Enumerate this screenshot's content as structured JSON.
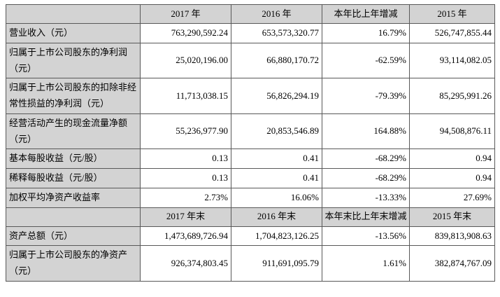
{
  "colors": {
    "header_bg": "#d3d3d3",
    "cell_bg": "#ffffff",
    "border": "#595959",
    "text": "#000000"
  },
  "table": {
    "sections": [
      {
        "headers": [
          "",
          "2017 年",
          "2016 年",
          "本年比上年增减",
          "2015 年"
        ],
        "rows": [
          {
            "label": "营业收入（元）",
            "values": [
              "763,290,592.24",
              "653,573,320.77",
              "16.79%",
              "526,747,855.44"
            ]
          },
          {
            "label": "归属于上市公司股东的净利润（元）",
            "values": [
              "25,020,196.00",
              "66,880,170.72",
              "-62.59%",
              "93,114,082.05"
            ]
          },
          {
            "label": "归属于上市公司股东的扣除非经常性损益的净利润（元）",
            "values": [
              "11,713,038.15",
              "56,826,294.19",
              "-79.39%",
              "85,295,991.26"
            ]
          },
          {
            "label": "经营活动产生的现金流量净额（元）",
            "values": [
              "55,236,977.90",
              "20,853,546.89",
              "164.88%",
              "94,508,876.11"
            ]
          },
          {
            "label": "基本每股收益（元/股）",
            "values": [
              "0.13",
              "0.41",
              "-68.29%",
              "0.94"
            ]
          },
          {
            "label": "稀释每股收益（元/股）",
            "values": [
              "0.13",
              "0.41",
              "-68.29%",
              "0.94"
            ]
          },
          {
            "label": "加权平均净资产收益率",
            "values": [
              "2.73%",
              "16.06%",
              "-13.33%",
              "27.69%"
            ]
          }
        ]
      },
      {
        "headers": [
          "",
          "2017 年末",
          "2016 年末",
          "本年末比上年末增减",
          "2015 年末"
        ],
        "rows": [
          {
            "label": "资产总额（元）",
            "values": [
              "1,473,689,726.94",
              "1,704,823,126.25",
              "-13.56%",
              "839,813,908.63"
            ]
          },
          {
            "label": "归属于上市公司股东的净资产（元）",
            "values": [
              "926,374,803.45",
              "911,691,095.79",
              "1.61%",
              "382,874,767.09"
            ]
          }
        ]
      }
    ]
  }
}
